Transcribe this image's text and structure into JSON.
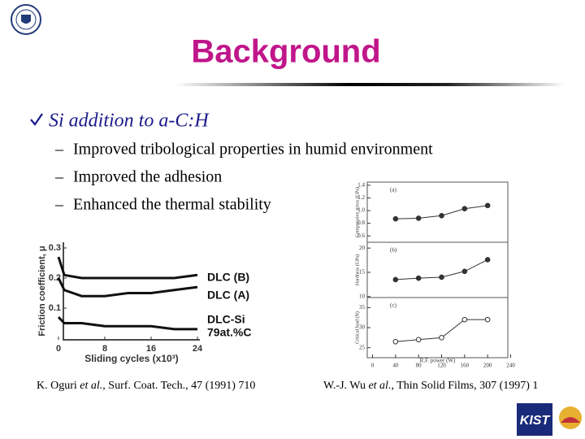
{
  "title": "Background",
  "bullet": "Si addition to a-C:H",
  "subbullets": [
    "Improved tribological properties in humid environment",
    "Improved the adhesion",
    "Enhanced the thermal stability"
  ],
  "references": [
    {
      "author": "K. Oguri",
      "etal": "et al.",
      "source": ", Surf. Coat. Tech., 47 (1991) 710"
    },
    {
      "author": "W.-J. Wu",
      "etal": "et al.",
      "source": ", Thin Solid Films, 307 (1997) 1"
    }
  ],
  "logo": "KIST",
  "chart_data": [
    {
      "type": "line",
      "x_label": "Sliding cycles (x10³)",
      "y_label": "Friction coefficient, μ",
      "x": [
        0,
        1,
        4,
        8,
        12,
        16,
        20,
        24
      ],
      "xlim": [
        0,
        24
      ],
      "xticks": [
        0,
        8,
        16,
        24
      ],
      "ylim": [
        0,
        0.3
      ],
      "yticks": [
        0.1,
        0.2,
        0.3
      ],
      "color": "#111111",
      "series": [
        {
          "name": "DLC (B)",
          "values": [
            0.27,
            0.21,
            0.2,
            0.2,
            0.2,
            0.2,
            0.2,
            0.21
          ]
        },
        {
          "name": "DLC (A)",
          "values": [
            0.2,
            0.16,
            0.14,
            0.14,
            0.15,
            0.15,
            0.16,
            0.17
          ]
        },
        {
          "name": "DLC-Si",
          "values": [
            0.07,
            0.05,
            0.05,
            0.04,
            0.04,
            0.04,
            0.03,
            0.03
          ]
        }
      ],
      "annotation": "79at.%C"
    },
    {
      "type": "line",
      "label": "(a)",
      "y_label": "Compressive stress (GPa)",
      "marker": "filled",
      "color": "#333333",
      "x": [
        40,
        80,
        120,
        160,
        200
      ],
      "xlim": [
        -5,
        245
      ],
      "ylim": [
        0.5,
        1.45
      ],
      "yticks": [
        0.6,
        0.8,
        {
          "value": 1.0,
          "label": "1.0"
        },
        1.2,
        1.4
      ],
      "series": [
        {
          "values": [
            0.87,
            0.88,
            0.92,
            1.03,
            1.08
          ]
        }
      ]
    },
    {
      "type": "line",
      "label": "(b)",
      "y_label": "Hardness (GPa)",
      "marker": "filled",
      "color": "#333333",
      "x": [
        40,
        80,
        120,
        160,
        200
      ],
      "xlim": [
        -5,
        245
      ],
      "ylim": [
        9.8,
        21.2
      ],
      "yticks": [
        10,
        15,
        20
      ],
      "series": [
        {
          "values": [
            13.5,
            13.8,
            14,
            15.2,
            17.6
          ]
        }
      ]
    },
    {
      "type": "line",
      "label": "(c)",
      "y_label": "Critical load (N)",
      "x_label": "R.F. power (W)",
      "marker": "open",
      "color": "#333333",
      "x": [
        40,
        80,
        120,
        160,
        200
      ],
      "xlim": [
        -5,
        245
      ],
      "xticks": [
        0,
        40,
        80,
        120,
        160,
        200,
        240
      ],
      "ylim": [
        22.5,
        37.5
      ],
      "yticks": [
        25,
        30,
        35
      ],
      "series": [
        {
          "values": [
            26.5,
            27,
            27.5,
            32,
            32
          ]
        }
      ]
    }
  ]
}
